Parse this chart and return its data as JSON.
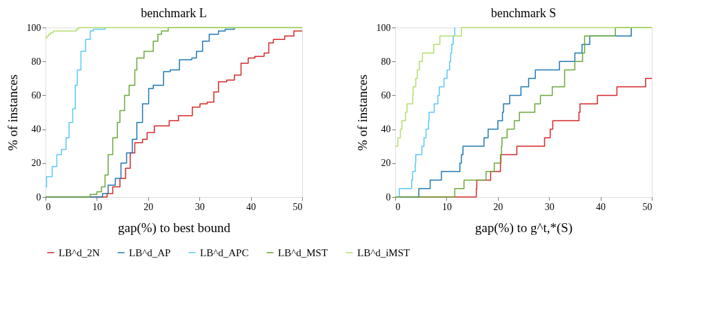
{
  "chart_data": [
    {
      "type": "step",
      "title": "benchmark L",
      "xlabel": "gap(%) to best bound",
      "ylabel": "% of instances",
      "xlim": [
        0,
        50
      ],
      "xticks": [
        0,
        10,
        20,
        30,
        40,
        50
      ],
      "ylim": [
        0,
        100
      ],
      "yticks": [
        0,
        20,
        40,
        60,
        80,
        100
      ],
      "grid": false,
      "legend": "bottom",
      "line_style": "solid",
      "series": [
        {
          "name": "LB^d_2N",
          "color": "#d62728",
          "x": [
            0,
            11.8,
            12.0,
            13.1,
            14.5,
            15.6,
            16.5,
            17.4,
            18.9,
            19.8,
            21.2,
            24.1,
            25.9,
            27.7,
            28.6,
            30.1,
            31.5,
            32.8,
            33.7,
            35.3,
            36.8,
            38.1,
            39.5,
            40.8,
            42.6,
            43.5,
            44.4,
            46.6,
            48.4,
            49.5,
            50
          ],
          "values": [
            0,
            0,
            2,
            6,
            11,
            17,
            26,
            32,
            34,
            38,
            42,
            45,
            48,
            48,
            53,
            55,
            56,
            62,
            68,
            69,
            72,
            79,
            82,
            83,
            85,
            91,
            93,
            95,
            98,
            98,
            98
          ]
        },
        {
          "name": "LB^d_AP",
          "color": "#1f78b4",
          "x": [
            0,
            10.9,
            11.1,
            12.2,
            13.6,
            14.7,
            15.8,
            16.9,
            17.8,
            18.9,
            20.1,
            21.0,
            22.5,
            23.0,
            24.3,
            26.1,
            28.5,
            29.4,
            30.6,
            31.9,
            33.7,
            35.0,
            36.8
          ],
          "values": [
            0,
            0,
            2,
            7,
            11,
            20,
            26,
            34,
            44,
            55,
            64,
            66,
            66,
            74,
            75,
            81,
            82,
            86,
            92,
            96,
            98,
            99,
            100
          ]
        },
        {
          "name": "LB^d_APC",
          "color": "#5ac8fa",
          "x": [
            0,
            0.2,
            1.3,
            2.2,
            3.1,
            4.0,
            4.6,
            5.3,
            5.8,
            6.2,
            6.9,
            7.8,
            8.7,
            9.3,
            11.6
          ],
          "values": [
            6,
            12,
            18,
            25,
            28,
            35,
            44,
            52,
            66,
            75,
            86,
            93,
            98,
            99,
            100
          ]
        },
        {
          "name": "LB^d_MST",
          "color": "#6aa83a",
          "x": [
            0,
            8.7,
            10.0,
            10.9,
            11.6,
            12.2,
            13.1,
            14.0,
            14.5,
            15.4,
            16.3,
            17.4,
            17.8,
            19.2,
            21.0,
            21.9,
            22.6,
            23.9,
            50
          ],
          "values": [
            0,
            1.5,
            3,
            6,
            13,
            25,
            35,
            44,
            51,
            60,
            66,
            75,
            82,
            86,
            92,
            96,
            98,
            100,
            100
          ]
        },
        {
          "name": "LB^d_iMST",
          "color": "#b5de6e",
          "x": [
            0,
            0.3,
            0.6,
            1.0,
            1.5,
            6.0,
            6.4,
            50
          ],
          "values": [
            94,
            95,
            96,
            97,
            98,
            99,
            100,
            100
          ]
        }
      ]
    },
    {
      "type": "step",
      "title": "benchmark S",
      "xlabel": "gap(%) to g^t,*(S)",
      "ylabel": "% of instances",
      "xlim": [
        0,
        50
      ],
      "xticks": [
        0,
        10,
        20,
        30,
        40,
        50
      ],
      "ylim": [
        0,
        100
      ],
      "yticks": [
        0,
        20,
        40,
        60,
        80,
        100
      ],
      "grid": false,
      "legend": "bottom",
      "line_style": "solid",
      "series": [
        {
          "name": "LB^d_2N",
          "color": "#d62728",
          "x": [
            0,
            15.8,
            15.9,
            18.6,
            20.5,
            20.6,
            23.7,
            29.1,
            30.2,
            30.7,
            35.8,
            36.0,
            39.4,
            43.2,
            48.8,
            50
          ],
          "values": [
            0,
            5,
            10,
            15,
            20,
            25,
            30,
            35,
            40,
            45,
            50,
            55,
            60,
            65,
            70,
            70
          ]
        },
        {
          "name": "LB^d_AP",
          "color": "#1f78b4",
          "x": [
            0,
            4.6,
            6.8,
            9.0,
            12.6,
            12.9,
            13.2,
            17.3,
            18.1,
            20.0,
            20.9,
            21.1,
            22.3,
            24.5,
            26.0,
            27.3,
            32.0,
            35.0,
            36.4,
            37.9,
            46.0
          ],
          "values": [
            0,
            5,
            10,
            15,
            20,
            25,
            30,
            35,
            40,
            45,
            50,
            55,
            60,
            65,
            70,
            75,
            80,
            85,
            90,
            95,
            100
          ]
        },
        {
          "name": "LB^d_APC",
          "color": "#5ac8fa",
          "x": [
            0,
            0.8,
            3.2,
            3.4,
            3.9,
            4.0,
            5.2,
            5.6,
            6.0,
            6.5,
            6.6,
            7.6,
            8.3,
            8.6,
            9.5,
            10.1,
            10.6,
            10.8,
            11.0,
            11.3,
            11.6
          ],
          "values": [
            0,
            5,
            10,
            15,
            20,
            25,
            30,
            35,
            40,
            45,
            50,
            55,
            60,
            65,
            70,
            75,
            80,
            85,
            90,
            95,
            100
          ]
        },
        {
          "name": "LB^d_MST",
          "color": "#6aa83a",
          "x": [
            0,
            11.6,
            13.4,
            17.7,
            19.3,
            20.5,
            20.7,
            20.8,
            21.8,
            23.2,
            24.2,
            27.2,
            28.3,
            30.6,
            33.0,
            35.0,
            36.5,
            36.9,
            42.9,
            50
          ],
          "values": [
            0,
            5,
            10,
            15,
            20,
            25,
            30,
            35,
            40,
            45,
            50,
            55,
            60,
            65,
            75,
            80,
            85,
            95,
            100,
            100
          ]
        },
        {
          "name": "LB^d_iMST",
          "color": "#b5de6e",
          "x": [
            0,
            0.5,
            1.0,
            1.3,
            2.0,
            2.3,
            3.4,
            3.5,
            4.0,
            4.3,
            4.7,
            5.3,
            7.5,
            8.7,
            12.9,
            50
          ],
          "values": [
            30,
            35,
            40,
            45,
            50,
            55,
            60,
            65,
            70,
            75,
            80,
            85,
            90,
            95,
            100,
            100
          ]
        }
      ]
    }
  ]
}
